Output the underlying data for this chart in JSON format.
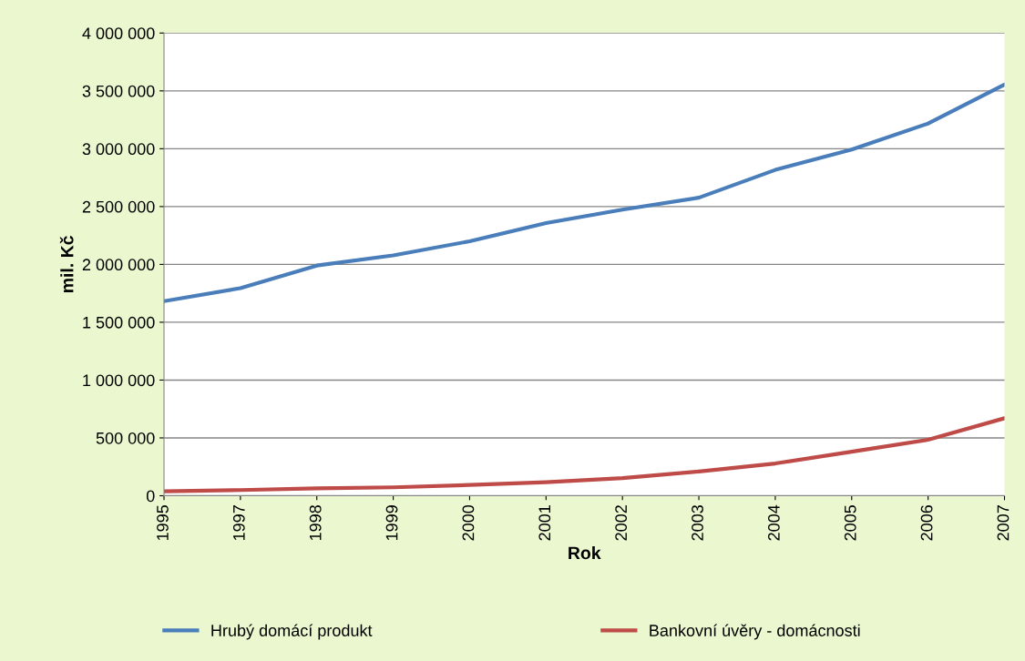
{
  "chart_data": {
    "type": "line",
    "xlabel": "Rok",
    "ylabel": "mil. Kč",
    "categories": [
      "1995",
      "1997",
      "1998",
      "1999",
      "2000",
      "2001",
      "2002",
      "2003",
      "2004",
      "2005",
      "2006",
      "2007"
    ],
    "series": [
      {
        "name": "Hrubý domácí produkt",
        "color": "#4a7ebb",
        "values": [
          1682000,
          1795000,
          1990000,
          2078000,
          2200000,
          2357000,
          2474000,
          2577000,
          2817000,
          2993000,
          3218000,
          3555000
        ]
      },
      {
        "name": "Bankovní úvěry - domácnosti",
        "color": "#be4b48",
        "values": [
          39000,
          49000,
          64000,
          73000,
          93000,
          117000,
          152000,
          210000,
          279000,
          381000,
          484000,
          670000
        ]
      }
    ],
    "ylim": [
      0,
      4000000
    ],
    "yticks": [
      {
        "value": 0,
        "label": "0"
      },
      {
        "value": 500000,
        "label": "500 000"
      },
      {
        "value": 1000000,
        "label": "1 000 000"
      },
      {
        "value": 1500000,
        "label": "1 500 000"
      },
      {
        "value": 2000000,
        "label": "2 000 000"
      },
      {
        "value": 2500000,
        "label": "2 500 000"
      },
      {
        "value": 3000000,
        "label": "3 000 000"
      },
      {
        "value": 3500000,
        "label": "3 500 000"
      },
      {
        "value": 4000000,
        "label": "4 000 000"
      }
    ],
    "grid": "y",
    "legend": "bottom",
    "marker": "none",
    "line_style": "solid"
  }
}
